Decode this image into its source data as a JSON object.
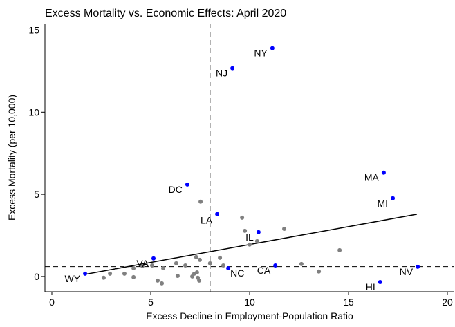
{
  "chart_data": {
    "type": "scatter",
    "title": "Excess Mortality vs. Economic Effects: April 2020",
    "x_label": "Excess Decline in Employment-Population Ratio",
    "y_label": "Excess Mortality (per 10,000)",
    "xlim": [
      -0.35,
      20.35
    ],
    "ylim": [
      -0.93,
      15.4
    ],
    "xticks": [
      0,
      5,
      10,
      15,
      20
    ],
    "yticks": [
      0,
      5,
      10,
      15
    ],
    "series": [
      {
        "color": "#808080",
        "x": [
          2.62,
          2.94,
          3.67,
          4.13,
          4.13,
          4.58,
          5.07,
          5.35,
          5.56,
          5.63,
          6.29,
          6.36,
          6.75,
          7.1,
          7.2,
          7.3,
          7.34,
          7.38,
          7.45,
          7.52,
          7.48,
          8.0,
          8.5,
          8.67,
          9.62,
          9.76,
          10.0,
          10.38,
          11.75,
          12.62,
          13.5,
          14.55
        ],
        "y": [
          -0.08,
          0.17,
          0.17,
          -0.04,
          0.5,
          0.63,
          0.67,
          -0.25,
          -0.42,
          0.5,
          0.8,
          0.04,
          0.67,
          0,
          0.17,
          1.18,
          0.25,
          -0.08,
          -0.25,
          4.55,
          1.01,
          0.8,
          1.14,
          0.67,
          3.58,
          2.78,
          1.94,
          2.15,
          2.9,
          0.76,
          0.3,
          1.6
        ]
      },
      {
        "color": "#0000ff",
        "labels": [
          "WY",
          "VA",
          "DC",
          "LA",
          "NJ",
          "NY",
          "NC",
          "IL",
          "CA",
          "MA",
          "MI",
          "HI",
          "NV"
        ],
        "x": [
          1.68,
          5.14,
          6.85,
          8.36,
          9.13,
          11.15,
          8.92,
          10.45,
          11.3,
          16.78,
          17.24,
          16.6,
          18.5
        ],
        "y": [
          0.17,
          1.1,
          5.6,
          3.8,
          12.68,
          13.9,
          0.5,
          2.7,
          0.67,
          6.32,
          4.76,
          -0.34,
          0.59
        ]
      }
    ],
    "fit": {
      "color": "#000000",
      "x": [
        1.68,
        18.46
      ],
      "y": [
        0.13,
        3.79
      ]
    },
    "vline": 8,
    "hline": 0.6
  }
}
